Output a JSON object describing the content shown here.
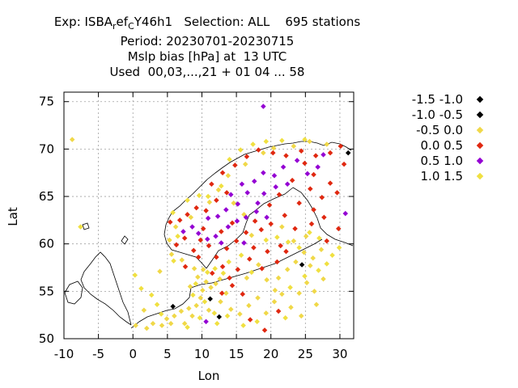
{
  "title": {
    "line1": "Exp: ISBA",
    "line1_sub1": "r",
    "line1_mid": "ef",
    "line1_sub2": "C",
    "line1_rest": "Y46h1   Selection: ALL    695 stations",
    "line2": "Period: 20230701-20230715",
    "line3": "Mslp bias [hPa] at  13 UTC",
    "line4": "Used  00,03,...,21 + 01 04 ... 58"
  },
  "axes": {
    "xlabel": "Lon",
    "ylabel": "Lat",
    "xlim": [
      -10,
      32
    ],
    "ylim": [
      50,
      76
    ],
    "xticks": [
      "-10",
      "-5",
      "0",
      "5",
      "10",
      "15",
      "20",
      "25",
      "30"
    ],
    "yticks": [
      "50",
      "55",
      "60",
      "65",
      "70",
      "75"
    ],
    "grid": true
  },
  "legend": {
    "placement": "right",
    "items": [
      {
        "label": "-1.5 -1.0",
        "color": "#000000"
      },
      {
        "label": "-1.0 -0.5",
        "color": "#000000"
      },
      {
        "label": "-0.5 0.0",
        "color": "#f0d848"
      },
      {
        "label": "0.0 0.5",
        "color": "#e02810"
      },
      {
        "label": "0.5 1.0",
        "color": "#9400d3"
      },
      {
        "label": "1.0 1.5",
        "color": "#f0e040"
      }
    ]
  },
  "chart_data": {
    "type": "scatter",
    "title": "Mslp bias [hPa] at  13 UTC",
    "xlabel": "Lon",
    "ylabel": "Lat",
    "xlim": [
      -10,
      32
    ],
    "ylim": [
      50,
      76
    ],
    "series": [
      {
        "name": "-1.5 -1.0",
        "color": "#000000",
        "points": [
          [
            12.5,
            52.3
          ]
        ]
      },
      {
        "name": "-1.0 -0.5",
        "color": "#000000",
        "points": [
          [
            24.5,
            57.8
          ],
          [
            11.2,
            54.2
          ],
          [
            5.8,
            53.4
          ],
          [
            31.2,
            69.6
          ]
        ]
      },
      {
        "name": "-0.5 0.0",
        "color": "#f0d848",
        "points": [
          [
            -8.8,
            71.0
          ],
          [
            2.0,
            51.1
          ],
          [
            2.9,
            51.6
          ],
          [
            4.2,
            51.4
          ],
          [
            4.9,
            52.1
          ],
          [
            5.5,
            51.6
          ],
          [
            6.0,
            52.4
          ],
          [
            7.0,
            52.9
          ],
          [
            7.5,
            51.6
          ],
          [
            8.1,
            53.2
          ],
          [
            8.6,
            52.4
          ],
          [
            9.2,
            53.5
          ],
          [
            9.8,
            54.3
          ],
          [
            10.1,
            55.1
          ],
          [
            10.6,
            56.0
          ],
          [
            11.3,
            55.4
          ],
          [
            12.0,
            55.8
          ],
          [
            12.6,
            56.3
          ],
          [
            9.4,
            56.5
          ],
          [
            8.3,
            55.5
          ],
          [
            10.2,
            57.3
          ],
          [
            11.0,
            53.0
          ],
          [
            12.7,
            53.9
          ],
          [
            13.5,
            54.8
          ],
          [
            14.2,
            53.1
          ],
          [
            15.5,
            52.6
          ],
          [
            16.8,
            53.5
          ],
          [
            18.1,
            54.3
          ],
          [
            19.3,
            52.7
          ],
          [
            20.5,
            53.9
          ],
          [
            21.6,
            54.7
          ],
          [
            22.9,
            53.3
          ],
          [
            24.1,
            54.8
          ],
          [
            25.2,
            55.9
          ],
          [
            26.3,
            55.0
          ],
          [
            21.1,
            56.4
          ],
          [
            22.4,
            57.3
          ],
          [
            23.6,
            58.1
          ],
          [
            24.8,
            59.1
          ],
          [
            26.1,
            58.5
          ],
          [
            27.3,
            59.4
          ],
          [
            23.3,
            60.3
          ],
          [
            25.1,
            60.8
          ],
          [
            21.6,
            61.8
          ],
          [
            17.2,
            60.9
          ],
          [
            16.1,
            63.1
          ],
          [
            14.6,
            64.3
          ],
          [
            12.4,
            65.7
          ],
          [
            13.8,
            67.2
          ],
          [
            16.3,
            68.4
          ],
          [
            18.9,
            69.6
          ],
          [
            20.4,
            70.1
          ],
          [
            23.3,
            70.3
          ],
          [
            25.6,
            70.8
          ],
          [
            28.1,
            70.5
          ],
          [
            11.1,
            64.4
          ],
          [
            8.4,
            62.8
          ],
          [
            6.2,
            61.8
          ],
          [
            5.3,
            60.4
          ],
          [
            5.6,
            58.9
          ],
          [
            7.1,
            58.3
          ],
          [
            8.9,
            57.4
          ],
          [
            3.9,
            57.1
          ],
          [
            1.6,
            53.0
          ],
          [
            0.4,
            51.4
          ],
          [
            16.5,
            56.4
          ],
          [
            18.2,
            57.8
          ],
          [
            19.4,
            56.2
          ],
          [
            20.6,
            55.1
          ],
          [
            24.4,
            52.4
          ],
          [
            26.6,
            53.6
          ],
          [
            27.6,
            56.3
          ],
          [
            25.7,
            57.7
          ]
        ]
      },
      {
        "name": "0.0 0.5",
        "color": "#e02810",
        "points": [
          [
            5.4,
            62.3
          ],
          [
            6.8,
            62.5
          ],
          [
            7.9,
            63.1
          ],
          [
            9.2,
            63.8
          ],
          [
            10.6,
            63.5
          ],
          [
            12.1,
            64.6
          ],
          [
            13.6,
            65.4
          ],
          [
            11.4,
            66.3
          ],
          [
            13.0,
            67.5
          ],
          [
            14.8,
            68.3
          ],
          [
            16.5,
            69.2
          ],
          [
            18.2,
            69.9
          ],
          [
            20.3,
            69.6
          ],
          [
            22.2,
            69.3
          ],
          [
            24.4,
            69.8
          ],
          [
            26.5,
            69.3
          ],
          [
            28.6,
            69.6
          ],
          [
            30.1,
            70.3
          ],
          [
            26.2,
            67.3
          ],
          [
            28.6,
            66.4
          ],
          [
            25.7,
            65.8
          ],
          [
            23.1,
            66.7
          ],
          [
            21.2,
            65.2
          ],
          [
            19.8,
            64.1
          ],
          [
            17.7,
            62.4
          ],
          [
            16.4,
            61.2
          ],
          [
            15.0,
            60.3
          ],
          [
            13.6,
            59.5
          ],
          [
            12.1,
            58.6
          ],
          [
            11.0,
            59.8
          ],
          [
            9.8,
            60.4
          ],
          [
            8.8,
            59.3
          ],
          [
            7.5,
            60.6
          ],
          [
            6.3,
            59.9
          ],
          [
            10.2,
            61.6
          ],
          [
            12.8,
            61.3
          ],
          [
            14.4,
            62.2
          ],
          [
            16.9,
            58.4
          ],
          [
            15.2,
            57.3
          ],
          [
            14.0,
            56.4
          ],
          [
            13.0,
            57.6
          ],
          [
            17.5,
            59.6
          ],
          [
            19.5,
            59.2
          ],
          [
            21.4,
            59.8
          ],
          [
            23.5,
            61.6
          ],
          [
            25.9,
            62.1
          ],
          [
            27.7,
            62.8
          ],
          [
            29.8,
            61.6
          ],
          [
            28.1,
            60.3
          ],
          [
            26.2,
            63.6
          ],
          [
            24.1,
            64.3
          ],
          [
            22.0,
            63.0
          ],
          [
            20.0,
            62.1
          ],
          [
            18.6,
            61.5
          ],
          [
            20.9,
            58.1
          ],
          [
            22.2,
            59.2
          ],
          [
            18.7,
            57.4
          ],
          [
            14.4,
            55.6
          ],
          [
            12.9,
            54.8
          ],
          [
            11.5,
            56.9
          ],
          [
            9.5,
            58.6
          ],
          [
            7.6,
            57.6
          ],
          [
            15.9,
            54.7
          ],
          [
            17.0,
            52.0
          ],
          [
            19.1,
            50.9
          ],
          [
            21.1,
            52.9
          ],
          [
            27.4,
            64.9
          ],
          [
            29.6,
            65.4
          ],
          [
            30.6,
            68.4
          ],
          [
            24.9,
            68.5
          ]
        ]
      },
      {
        "name": "0.5 1.0",
        "color": "#9400d3",
        "points": [
          [
            18.9,
            74.5
          ],
          [
            7.3,
            61.3
          ],
          [
            8.6,
            61.8
          ],
          [
            9.5,
            61.1
          ],
          [
            10.9,
            62.7
          ],
          [
            12.3,
            62.9
          ],
          [
            13.5,
            63.6
          ],
          [
            15.2,
            64.2
          ],
          [
            16.6,
            65.4
          ],
          [
            17.6,
            66.6
          ],
          [
            18.9,
            67.5
          ],
          [
            20.5,
            67.2
          ],
          [
            21.8,
            68.1
          ],
          [
            22.4,
            66.3
          ],
          [
            20.7,
            66.0
          ],
          [
            19.0,
            65.3
          ],
          [
            18.1,
            64.3
          ],
          [
            16.4,
            62.8
          ],
          [
            15.1,
            62.4
          ],
          [
            13.8,
            61.8
          ],
          [
            12.0,
            60.8
          ],
          [
            10.8,
            60.5
          ],
          [
            17.9,
            63.4
          ],
          [
            19.4,
            62.8
          ],
          [
            15.8,
            66.3
          ],
          [
            14.2,
            65.2
          ],
          [
            23.8,
            68.8
          ],
          [
            25.3,
            67.4
          ],
          [
            26.8,
            68.1
          ],
          [
            27.6,
            69.4
          ],
          [
            10.6,
            51.8
          ],
          [
            30.8,
            63.2
          ],
          [
            12.8,
            60.1
          ],
          [
            16.1,
            60.1
          ]
        ]
      },
      {
        "name": "1.0 1.5",
        "color": "#f0e040",
        "points": [
          [
            -7.6,
            61.8
          ],
          [
            0.3,
            56.7
          ],
          [
            1.2,
            55.3
          ],
          [
            2.7,
            54.6
          ],
          [
            3.5,
            53.6
          ],
          [
            4.1,
            52.6
          ],
          [
            7.9,
            51.2
          ],
          [
            9.7,
            52.2
          ],
          [
            12.2,
            51.6
          ],
          [
            13.7,
            52.4
          ],
          [
            16.0,
            51.4
          ],
          [
            18.0,
            51.8
          ],
          [
            22.1,
            52.2
          ],
          [
            10.4,
            53.9
          ],
          [
            11.8,
            52.7
          ],
          [
            8.7,
            54.6
          ],
          [
            9.1,
            55.8
          ],
          [
            10.8,
            57.0
          ],
          [
            11.9,
            57.4
          ],
          [
            13.1,
            56.9
          ],
          [
            13.9,
            58.1
          ],
          [
            15.7,
            58.8
          ],
          [
            17.2,
            57.0
          ],
          [
            22.8,
            55.4
          ],
          [
            24.9,
            56.6
          ],
          [
            26.9,
            57.2
          ],
          [
            28.1,
            57.9
          ],
          [
            28.9,
            58.8
          ],
          [
            29.9,
            59.6
          ],
          [
            27.0,
            60.6
          ],
          [
            25.6,
            61.2
          ],
          [
            19.3,
            60.4
          ],
          [
            20.9,
            60.7
          ],
          [
            22.5,
            60.2
          ],
          [
            24.1,
            59.6
          ],
          [
            5.9,
            58.2
          ],
          [
            6.5,
            60.8
          ],
          [
            5.8,
            63.3
          ],
          [
            7.9,
            64.6
          ],
          [
            9.6,
            65.1
          ],
          [
            10.9,
            65.0
          ],
          [
            12.8,
            66.1
          ],
          [
            14.0,
            68.9
          ],
          [
            15.6,
            69.9
          ],
          [
            17.4,
            70.5
          ],
          [
            19.3,
            70.8
          ],
          [
            21.6,
            70.9
          ],
          [
            24.9,
            71.0
          ]
        ]
      }
    ]
  }
}
